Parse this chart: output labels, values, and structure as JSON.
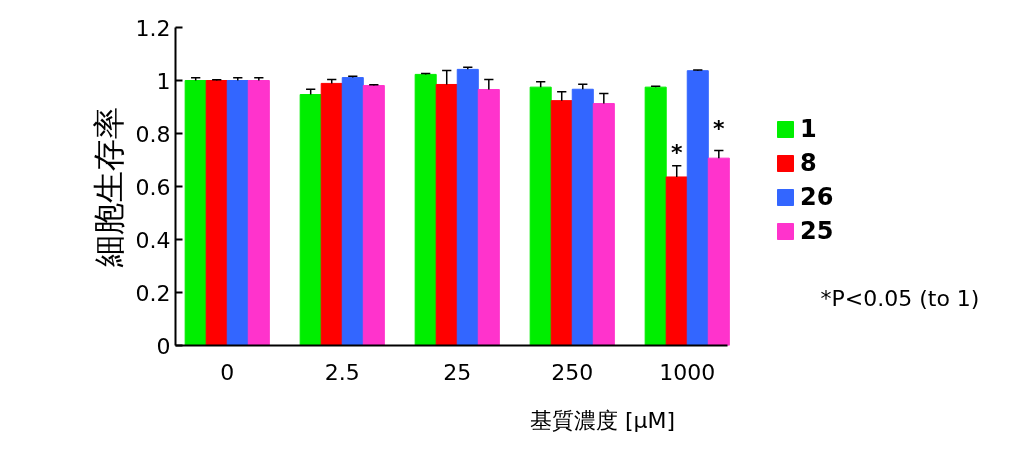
{
  "chart_data": {
    "type": "bar",
    "xlabel": "基質濃度 [μM]",
    "ylabel": "細胞生存率",
    "categories": [
      "0",
      "2.5",
      "25",
      "250",
      "1000"
    ],
    "series": [
      {
        "name": "1",
        "color": "#00ee00",
        "values": [
          1.0,
          0.947,
          1.023,
          0.975,
          0.975
        ],
        "errors": [
          [
            1.0,
            1.01
          ],
          [
            0.947,
            0.967
          ],
          [
            1.023,
            1.026
          ],
          [
            0.975,
            0.995
          ],
          [
            0.975,
            0.978
          ]
        ]
      },
      {
        "name": "8",
        "color": "#ff0000",
        "values": [
          1.0,
          0.989,
          0.985,
          0.924,
          0.636
        ],
        "errors": [
          [
            1.0,
            1.003
          ],
          [
            0.989,
            1.004
          ],
          [
            0.985,
            1.038
          ],
          [
            0.924,
            0.958
          ],
          [
            0.636,
            0.678
          ]
        ]
      },
      {
        "name": "26",
        "color": "#3366ff",
        "values": [
          1.0,
          1.011,
          1.042,
          0.967,
          1.037
        ],
        "errors": [
          [
            1.0,
            1.01
          ],
          [
            1.011,
            1.016
          ],
          [
            1.042,
            1.05
          ],
          [
            0.967,
            0.986
          ],
          [
            1.037,
            1.04
          ]
        ]
      },
      {
        "name": "25",
        "color": "#ff33cc",
        "values": [
          1.0,
          0.981,
          0.966,
          0.913,
          0.707
        ],
        "errors": [
          [
            1.0,
            1.01
          ],
          [
            0.981,
            0.984
          ],
          [
            0.966,
            1.004
          ],
          [
            0.913,
            0.951
          ],
          [
            0.707,
            0.736
          ]
        ]
      }
    ],
    "ylim": [
      0,
      1.2
    ],
    "yticks": [
      0,
      0.2,
      0.4,
      0.6,
      0.8,
      1,
      1.2
    ],
    "grid": false,
    "legend": "right",
    "annotations": [
      {
        "text": "*",
        "x": "1000",
        "y": 0.73
      },
      {
        "text": "*",
        "x": "1000",
        "y": 0.82
      },
      "*P<0.05 (to 1)"
    ]
  }
}
